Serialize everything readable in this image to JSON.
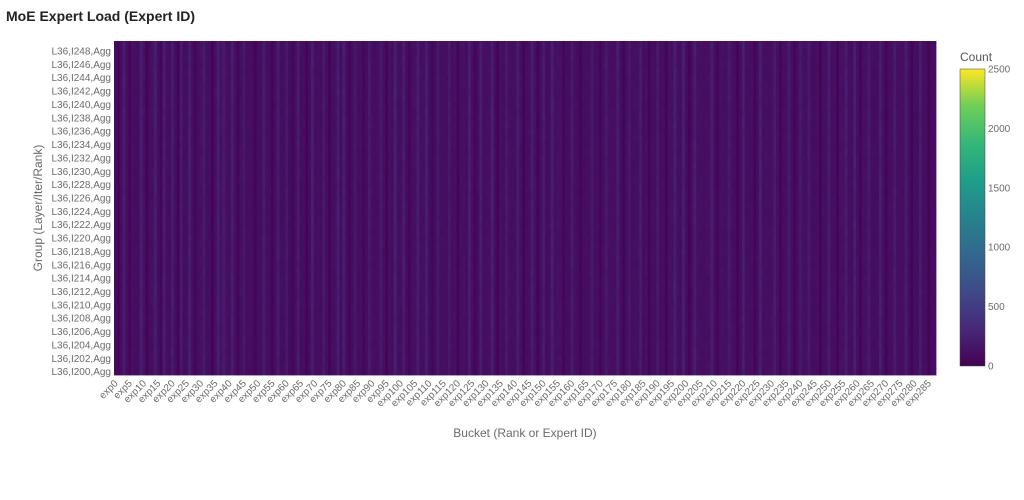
{
  "chart_data": {
    "type": "heatmap",
    "title": "MoE Expert Load (Expert ID)",
    "xlabel": "Bucket (Rank or Expert ID)",
    "ylabel": "Group (Layer/Iter/Rank)",
    "x_count": 288,
    "x_prefix": "exp",
    "x_tick_step": 5,
    "y": [
      "L36,I200,Agg",
      "L36,I201,Agg",
      "L36,I202,Agg",
      "L36,I203,Agg",
      "L36,I204,Agg",
      "L36,I205,Agg",
      "L36,I206,Agg",
      "L36,I207,Agg",
      "L36,I208,Agg",
      "L36,I209,Agg",
      "L36,I210,Agg",
      "L36,I211,Agg",
      "L36,I212,Agg",
      "L36,I213,Agg",
      "L36,I214,Agg",
      "L36,I215,Agg",
      "L36,I216,Agg",
      "L36,I217,Agg",
      "L36,I218,Agg",
      "L36,I219,Agg",
      "L36,I220,Agg",
      "L36,I221,Agg",
      "L36,I222,Agg",
      "L36,I223,Agg",
      "L36,I224,Agg",
      "L36,I225,Agg",
      "L36,I226,Agg",
      "L36,I227,Agg",
      "L36,I228,Agg",
      "L36,I229,Agg",
      "L36,I230,Agg",
      "L36,I231,Agg",
      "L36,I232,Agg",
      "L36,I233,Agg",
      "L36,I234,Agg",
      "L36,I235,Agg",
      "L36,I236,Agg",
      "L36,I237,Agg",
      "L36,I238,Agg",
      "L36,I239,Agg",
      "L36,I240,Agg",
      "L36,I241,Agg",
      "L36,I242,Agg",
      "L36,I243,Agg",
      "L36,I244,Agg",
      "L36,I245,Agg",
      "L36,I246,Agg",
      "L36,I247,Agg",
      "L36,I248,Agg",
      "L36,I249,Agg"
    ],
    "y_tick_step": 2,
    "colorbar": {
      "title": "Count",
      "min": 0,
      "max": 2500,
      "ticks": [
        0,
        500,
        1000,
        1500,
        2000,
        2500
      ]
    },
    "colorscale": "viridis",
    "approx_value_range": [
      0,
      300
    ]
  }
}
